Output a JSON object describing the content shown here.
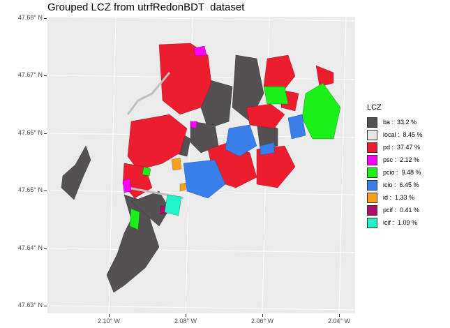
{
  "title": "Grouped LCZ from utrfRedonBDT  dataset",
  "axes": {
    "y_ticks": [
      "47.68° N",
      "47.67° N",
      "47.66° N",
      "47.65° N",
      "47.64° N",
      "47.63° N"
    ],
    "x_ticks": [
      "2.10° W",
      "2.08° W",
      "2.06° W",
      "2.04° W"
    ]
  },
  "legend": {
    "title": "LCZ",
    "items": [
      {
        "label": "ba :  33.2 %",
        "color": "#555152"
      },
      {
        "label": "local :  8.45 %",
        "color": "#e6e6e6"
      },
      {
        "label": "pd :  37.47 %",
        "color": "#ec1d2e"
      },
      {
        "label": "psc :  2.12 %",
        "color": "#ff00ff"
      },
      {
        "label": "pcio :  9.48 %",
        "color": "#1af11a"
      },
      {
        "label": "icio :  6.45 %",
        "color": "#3a7eea"
      },
      {
        "label": "id :  1.33 %",
        "color": "#f6a21b"
      },
      {
        "label": "pcif :  0.41 %",
        "color": "#ad0c6a"
      },
      {
        "label": "icif :  1.09 %",
        "color": "#21f3c9"
      }
    ]
  }
}
